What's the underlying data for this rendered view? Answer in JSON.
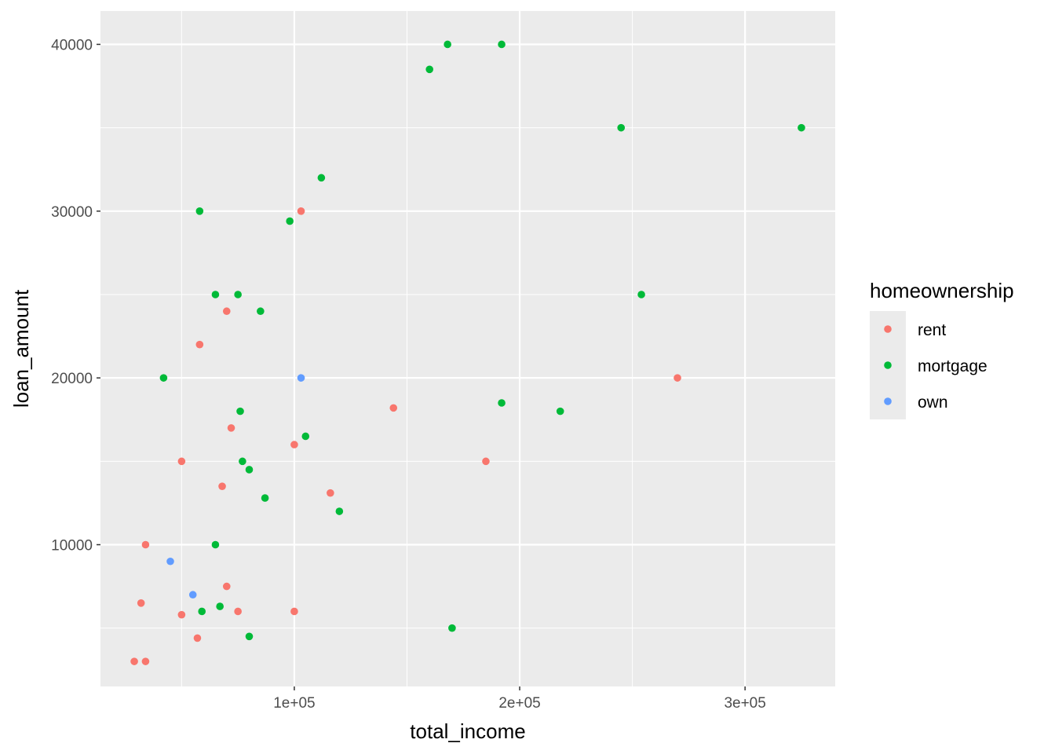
{
  "chart_data": {
    "type": "scatter",
    "title": "",
    "xlabel": "total_income",
    "ylabel": "loan_amount",
    "xlim": [
      14000,
      340000
    ],
    "ylim": [
      1500,
      42000
    ],
    "x_ticks": [
      100000,
      200000,
      300000
    ],
    "x_tick_labels": [
      "1e+05",
      "2e+05",
      "3e+05"
    ],
    "y_ticks": [
      10000,
      20000,
      30000,
      40000
    ],
    "y_tick_labels": [
      "10000",
      "20000",
      "30000",
      "40000"
    ],
    "grid": true,
    "legend": {
      "title": "homeownership",
      "position": "right"
    },
    "series": [
      {
        "name": "rent",
        "color": "#F8766D",
        "points": [
          [
            103000,
            30000
          ],
          [
            70000,
            24000
          ],
          [
            58000,
            22000
          ],
          [
            72000,
            17000
          ],
          [
            100000,
            16000
          ],
          [
            50000,
            15000
          ],
          [
            68000,
            13500
          ],
          [
            144000,
            18200
          ],
          [
            116000,
            13100
          ],
          [
            185000,
            15000
          ],
          [
            270000,
            20000
          ],
          [
            34000,
            10000
          ],
          [
            70000,
            7500
          ],
          [
            32000,
            6500
          ],
          [
            50000,
            5800
          ],
          [
            75000,
            6000
          ],
          [
            100000,
            6000
          ],
          [
            57000,
            4400
          ],
          [
            29000,
            3000
          ],
          [
            34000,
            3000
          ]
        ]
      },
      {
        "name": "mortgage",
        "color": "#00BA38",
        "points": [
          [
            168000,
            40000
          ],
          [
            192000,
            40000
          ],
          [
            160000,
            38500
          ],
          [
            245000,
            35000
          ],
          [
            325000,
            35000
          ],
          [
            112000,
            32000
          ],
          [
            58000,
            30000
          ],
          [
            98000,
            29400
          ],
          [
            65000,
            25000
          ],
          [
            75000,
            25000
          ],
          [
            254000,
            25000
          ],
          [
            85000,
            24000
          ],
          [
            42000,
            20000
          ],
          [
            76000,
            18000
          ],
          [
            192000,
            18500
          ],
          [
            218000,
            18000
          ],
          [
            105000,
            16500
          ],
          [
            77000,
            15000
          ],
          [
            80000,
            14500
          ],
          [
            87000,
            12800
          ],
          [
            120000,
            12000
          ],
          [
            65000,
            10000
          ],
          [
            67000,
            6300
          ],
          [
            59000,
            6000
          ],
          [
            80000,
            4500
          ],
          [
            170000,
            5000
          ]
        ]
      },
      {
        "name": "own",
        "color": "#619CFF",
        "points": [
          [
            103000,
            20000
          ],
          [
            45000,
            9000
          ],
          [
            55000,
            7000
          ]
        ]
      }
    ]
  }
}
